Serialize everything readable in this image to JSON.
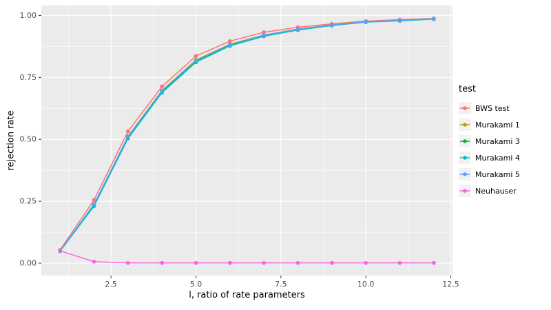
{
  "chart_data": {
    "type": "line",
    "title": "",
    "xlabel": "l, ratio of rate parameters",
    "ylabel": "rejection rate",
    "legend_title": "test",
    "legend_position": "right",
    "grid": true,
    "panel_bg": "#EBEBEB",
    "grid_color": "#FFFFFF",
    "tick_label_color": "#4D4D4D",
    "tick_mark_color": "#333333",
    "x": [
      1,
      2,
      3,
      4,
      5,
      6,
      7,
      8,
      9,
      10,
      11,
      12
    ],
    "series": [
      {
        "name": "BWS test",
        "color": "#F8766D",
        "values": [
          0.053,
          0.255,
          0.532,
          0.713,
          0.836,
          0.896,
          0.932,
          0.952,
          0.966,
          0.977,
          0.983,
          0.988
        ]
      },
      {
        "name": "Murakami 1",
        "color": "#B79F00",
        "values": [
          0.05,
          0.237,
          0.512,
          0.697,
          0.82,
          0.884,
          0.921,
          0.945,
          0.962,
          0.975,
          0.98,
          0.987
        ]
      },
      {
        "name": "Murakami 3",
        "color": "#00BA38",
        "values": [
          0.049,
          0.234,
          0.507,
          0.692,
          0.815,
          0.88,
          0.918,
          0.943,
          0.96,
          0.974,
          0.979,
          0.986
        ]
      },
      {
        "name": "Murakami 4",
        "color": "#00BFC4",
        "values": [
          0.048,
          0.23,
          0.503,
          0.688,
          0.811,
          0.877,
          0.916,
          0.941,
          0.959,
          0.973,
          0.978,
          0.985
        ]
      },
      {
        "name": "Murakami 5",
        "color": "#619CFF",
        "values": [
          0.05,
          0.238,
          0.51,
          0.695,
          0.818,
          0.882,
          0.92,
          0.944,
          0.961,
          0.975,
          0.98,
          0.987
        ]
      },
      {
        "name": "Neuhauser",
        "color": "#F564E3",
        "values": [
          0.05,
          0.006,
          0.001,
          0.001,
          0.001,
          0.001,
          0.001,
          0.001,
          0.001,
          0.001,
          0.001,
          0.001
        ]
      }
    ],
    "xtick_values": [
      2.5,
      5.0,
      7.5,
      10.0,
      12.5
    ],
    "xtick_labels": [
      "2.5",
      "5.0",
      "7.5",
      "10.0",
      "12.5"
    ],
    "ytick_values": [
      0.0,
      0.25,
      0.5,
      0.75,
      1.0
    ],
    "ytick_labels": [
      "0.00",
      "0.25",
      "0.50",
      "0.75",
      "1.00"
    ],
    "xlim": [
      0.45,
      12.55
    ],
    "ylim": [
      -0.05,
      1.04
    ]
  }
}
